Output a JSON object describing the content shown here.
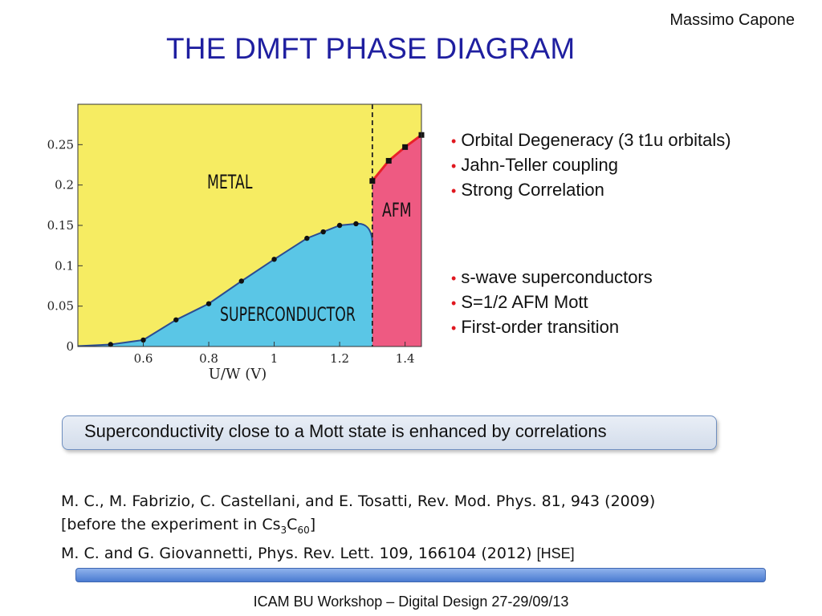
{
  "header": {
    "author": "Massimo Capone",
    "title": "THE DMFT PHASE DIAGRAM"
  },
  "chart_data": {
    "type": "line",
    "xlabel": "U/W (V)",
    "ylabel": "",
    "xlim": [
      0.4,
      1.45
    ],
    "ylim": [
      0,
      0.3
    ],
    "xticks": [
      0.6,
      0.8,
      1,
      1.2,
      1.4
    ],
    "xtick_labels": [
      "0.6",
      "0.8",
      "1",
      "1.2",
      "1.4"
    ],
    "yticks": [
      0,
      0.05,
      0.1,
      0.15,
      0.2,
      0.25
    ],
    "ytick_labels": [
      "0",
      "0.05",
      "0.1",
      "0.15",
      "0.2",
      "0.25"
    ],
    "grid": false,
    "regions": [
      {
        "label": "METAL",
        "color": "#f6ec62"
      },
      {
        "label": "SUPERCONDUCTOR",
        "color": "#5ac6e6"
      },
      {
        "label": "AFM",
        "color": "#ee5a82"
      }
    ],
    "transition_x": 1.3,
    "series": [
      {
        "color": "#2b4d93",
        "x": [
          0.5,
          0.6,
          0.7,
          0.8,
          0.9,
          1.0,
          1.1,
          1.15,
          1.2,
          1.25
        ],
        "y": [
          0.0025,
          0.008,
          0.033,
          0.053,
          0.081,
          0.108,
          0.134,
          0.142,
          0.15,
          0.152
        ]
      },
      {
        "color": "#e8202a",
        "x": [
          1.3,
          1.35,
          1.4,
          1.45
        ],
        "y": [
          0.205,
          0.23,
          0.247,
          0.262
        ]
      }
    ]
  },
  "bullets_a": [
    "Orbital Degeneracy (3 t1u orbitals)",
    "Jahn-Teller coupling",
    "Strong Correlation"
  ],
  "bullets_b": [
    "s-wave superconductors",
    "S=1/2 AFM Mott",
    "First-order transition"
  ],
  "callout": "Superconductivity close to a Mott state is enhanced by correlations",
  "references": {
    "line1": "M. C., M. Fabrizio, C. Castellani, and E. Tosatti, Rev. Mod. Phys. 81, 943 (2009)",
    "line2_prefix": "[before the experiment in Cs",
    "line2_sub1": "3",
    "line2_mid": "C",
    "line2_sub2": "60",
    "line2_suffix": "]",
    "line3": "M. C. and G. Giovannetti, Phys. Rev. Lett. 109, 166104 (2012)",
    "line3_note": "[HSE]"
  },
  "footer": "ICAM BU Workshop – Digital Design 27-29/09/13"
}
